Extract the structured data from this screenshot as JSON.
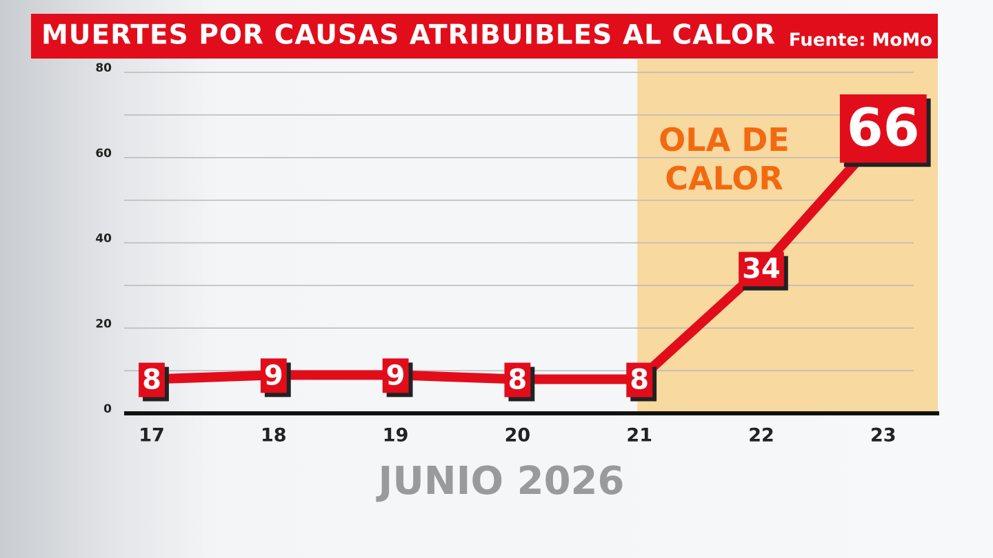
{
  "chart_data": {
    "type": "line",
    "title": "MUERTES POR CAUSAS ATRIBUIBLES AL CALOR",
    "source": "Fuente: MoMo",
    "x_label": "JUNIO 2026",
    "categories": [
      "17",
      "18",
      "19",
      "20",
      "21",
      "22",
      "23"
    ],
    "series": [
      {
        "name": "Muertes",
        "color": "#e20d1b",
        "values": [
          8,
          9,
          9,
          8,
          8,
          34,
          66
        ]
      }
    ],
    "ylim": [
      0,
      80
    ],
    "yticks": [
      0,
      20,
      40,
      60,
      80
    ],
    "grid": true,
    "highlight": {
      "from": "21",
      "label": "OLA DE CALOR",
      "color": "#f8d9a0"
    }
  }
}
